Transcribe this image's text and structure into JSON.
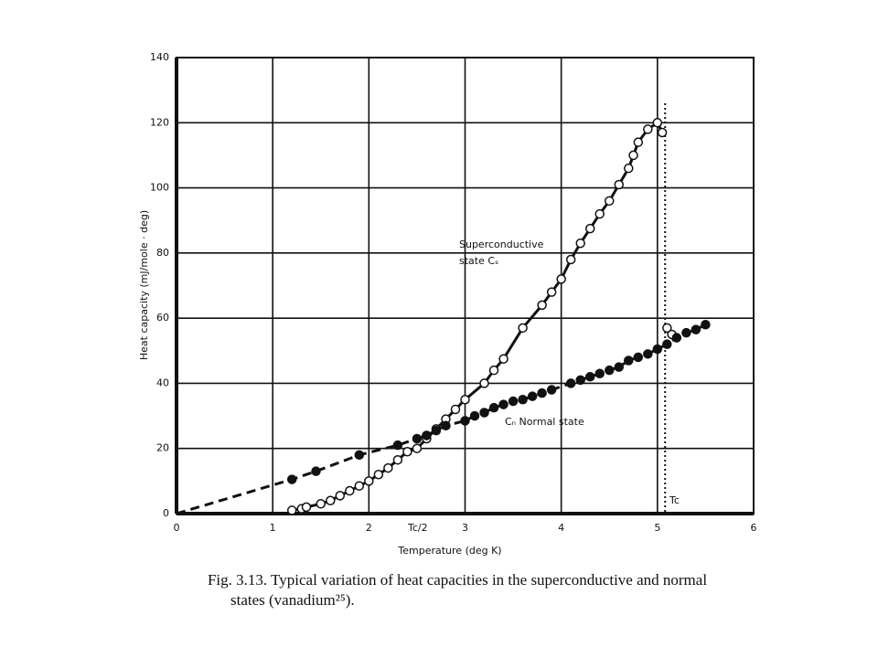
{
  "chart_data": {
    "type": "scatter",
    "xlabel": "Temperature (deg K)",
    "ylabel": "Heat capacity (mJ/mole · deg)",
    "xlim": [
      0,
      6
    ],
    "xticks": [
      0,
      1,
      2,
      3,
      4,
      5,
      6
    ],
    "ylim": [
      0,
      140
    ],
    "yticks": [
      0,
      20,
      40,
      60,
      80,
      100,
      120,
      140
    ],
    "grid": true,
    "annotations": [
      "Superconductive",
      "state Cₛ",
      "Cₙ Normal state",
      "Tc",
      "Tc/2"
    ],
    "tc": 5.08,
    "caption": [
      "Fig. 3.13.  Typical variation of heat capacities in the superconductive and normal",
      "states (vanadium²⁵)."
    ],
    "series": [
      {
        "color": "#111111",
        "marker": "open",
        "line": "solid",
        "x": [
          1.2,
          1.3,
          1.35,
          1.5,
          1.6,
          1.7,
          1.8,
          1.9,
          2.0,
          2.1,
          2.2,
          2.3,
          2.4,
          2.5,
          2.6,
          2.7,
          2.8,
          2.9,
          3.0,
          3.2,
          3.3,
          3.4,
          3.6,
          3.8,
          3.9,
          4.0,
          4.1,
          4.2,
          4.3,
          4.4,
          4.5,
          4.6,
          4.7,
          4.75,
          4.8,
          4.9,
          5.0,
          5.05
        ],
        "values": [
          1,
          1.5,
          2,
          3,
          4,
          5.5,
          7,
          8.5,
          10,
          12,
          14,
          16.5,
          19,
          20,
          23,
          26,
          29,
          32,
          35,
          40,
          44,
          47.5,
          57,
          64,
          68,
          72,
          78,
          83,
          87.5,
          92,
          96,
          101,
          106,
          110,
          114,
          118,
          120,
          117
        ]
      },
      {
        "color": "#111111",
        "marker": "open",
        "line": "none",
        "x": [
          5.1,
          5.15
        ],
        "values": [
          57,
          55
        ]
      },
      {
        "color": "#111111",
        "marker": "filled",
        "line": "dashed",
        "x": [
          1.2,
          1.45,
          1.9,
          2.3,
          2.5,
          2.6,
          2.7,
          2.8,
          3.0,
          3.1,
          3.2,
          3.3,
          3.4,
          3.5,
          3.6,
          3.7,
          3.8,
          3.9,
          4.1,
          4.2,
          4.3,
          4.4,
          4.5,
          4.6,
          4.7,
          4.8,
          4.9,
          5.0,
          5.1,
          5.2,
          5.3,
          5.4,
          5.5
        ],
        "values": [
          10.5,
          13,
          18,
          21,
          23,
          24,
          25.5,
          27,
          28.5,
          30,
          31,
          32.5,
          33.5,
          34.5,
          35,
          36,
          37,
          38,
          40,
          41,
          42,
          43,
          44,
          45,
          47,
          48,
          49,
          50.5,
          52,
          54,
          55.5,
          56.5,
          58
        ]
      }
    ]
  }
}
